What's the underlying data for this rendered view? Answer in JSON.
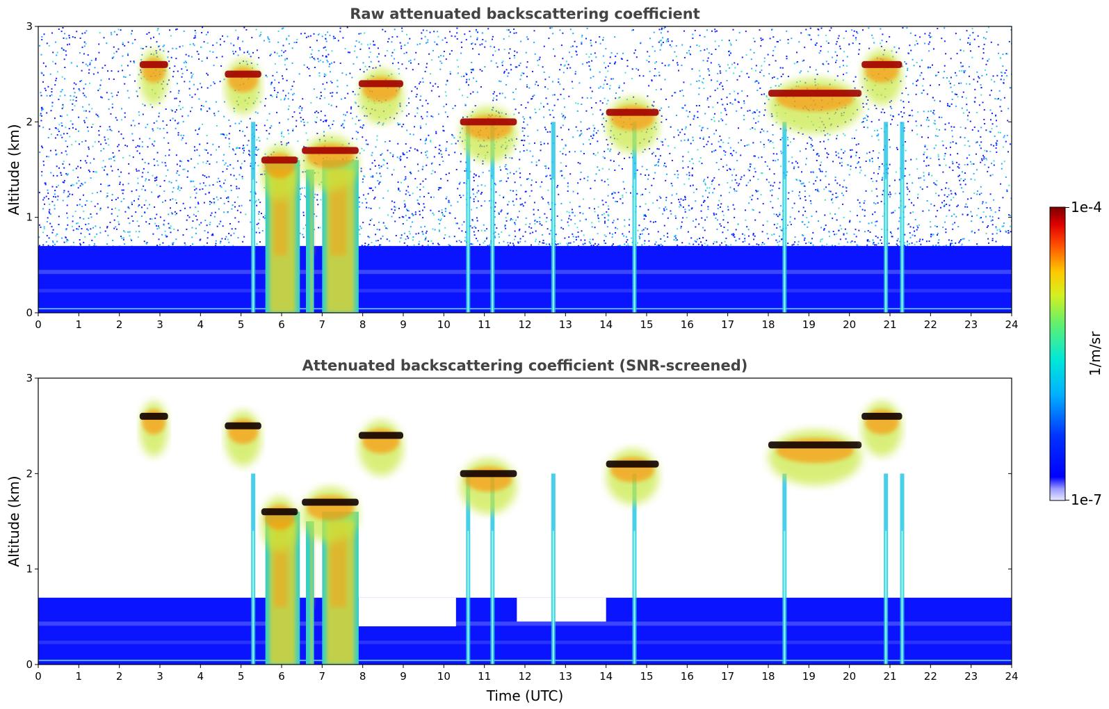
{
  "chart_data": [
    {
      "type": "heatmap",
      "title": "Raw attenuated backscattering coefficient",
      "xlabel": "",
      "ylabel": "Altitude (km)",
      "xlim": [
        0,
        24
      ],
      "ylim": [
        0,
        3
      ],
      "xticks": [
        "0",
        "1",
        "2",
        "3",
        "4",
        "5",
        "6",
        "7",
        "8",
        "9",
        "10",
        "11",
        "12",
        "13",
        "14",
        "15",
        "16",
        "17",
        "18",
        "19",
        "20",
        "21",
        "22",
        "23",
        "24"
      ],
      "yticks": [
        "0",
        "1",
        "2",
        "3"
      ],
      "screened": false
    },
    {
      "type": "heatmap",
      "title": "Attenuated backscattering coefficient (SNR-screened)",
      "xlabel": "Time (UTC)",
      "ylabel": "Altitude (km)",
      "xlim": [
        0,
        24
      ],
      "ylim": [
        0,
        3
      ],
      "xticks": [
        "0",
        "1",
        "2",
        "3",
        "4",
        "5",
        "6",
        "7",
        "8",
        "9",
        "10",
        "11",
        "12",
        "13",
        "14",
        "15",
        "16",
        "17",
        "18",
        "19",
        "20",
        "21",
        "22",
        "23",
        "24"
      ],
      "yticks": [
        "0",
        "1",
        "2",
        "3"
      ],
      "screened": true
    }
  ],
  "colorbar": {
    "label": "1/m/sr",
    "max_label": "1e-4",
    "min_label": "1e-7",
    "colormap": "jet",
    "scale": "log"
  },
  "features": {
    "boundary_layer_top_km": 0.7,
    "precipitation_shafts": [
      {
        "t0": 5.6,
        "t1": 6.45,
        "top_km": 1.6
      },
      {
        "t0": 6.6,
        "t1": 6.8,
        "top_km": 1.5
      },
      {
        "t0": 7.0,
        "t1": 7.9,
        "top_km": 1.6
      }
    ],
    "cloud_layers": [
      {
        "t0": 2.5,
        "t1": 3.2,
        "alt_km": 2.6
      },
      {
        "t0": 4.6,
        "t1": 5.5,
        "alt_km": 2.5
      },
      {
        "t0": 5.5,
        "t1": 6.4,
        "alt_km": 1.6
      },
      {
        "t0": 6.5,
        "t1": 7.9,
        "alt_km": 1.7
      },
      {
        "t0": 7.9,
        "t1": 9.0,
        "alt_km": 2.4
      },
      {
        "t0": 10.4,
        "t1": 11.8,
        "alt_km": 2.0
      },
      {
        "t0": 14.0,
        "t1": 15.3,
        "alt_km": 2.1
      },
      {
        "t0": 18.0,
        "t1": 20.3,
        "alt_km": 2.3
      },
      {
        "t0": 20.3,
        "t1": 21.3,
        "alt_km": 2.6
      }
    ],
    "virga_streaks_hours": [
      5.3,
      10.6,
      11.2,
      12.7,
      14.7,
      18.4,
      20.9,
      21.3
    ]
  }
}
